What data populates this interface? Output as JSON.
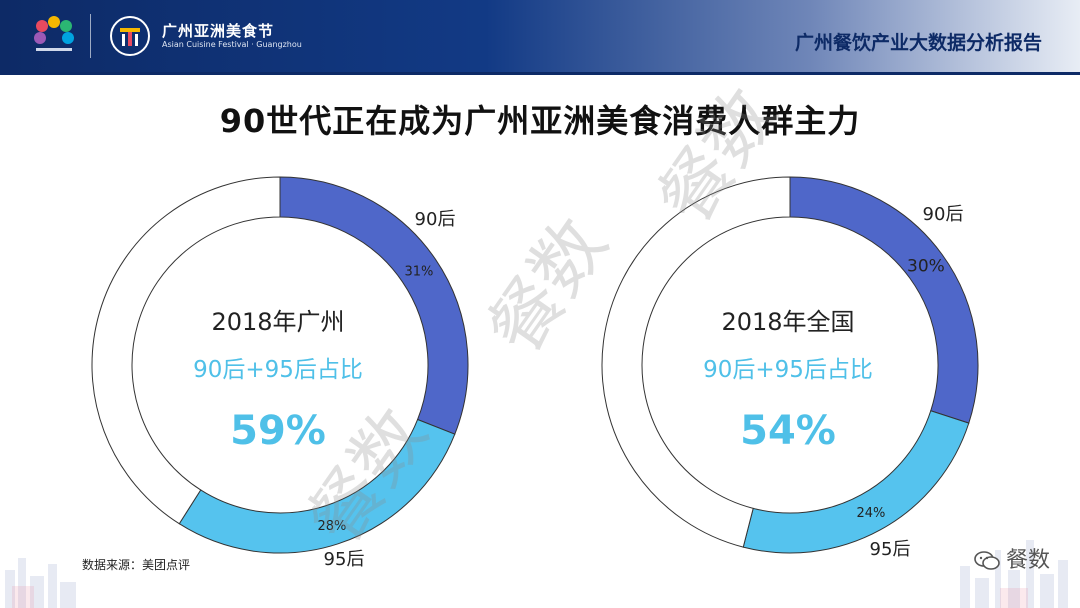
{
  "header": {
    "festival_name": "广州亚洲美食节",
    "festival_subtitle": "Asian Cuisine Festival · Guangzhou",
    "report_title": "广州餐饮产业大数据分析报告"
  },
  "main": {
    "title": "90世代正在成为广州亚洲美食消费人群主力"
  },
  "colors": {
    "series_90": "#4f67c9",
    "series_95": "#55c3ee",
    "rest": "#ffffff",
    "accent": "#4fc0e8",
    "header": "#0d2a66"
  },
  "chart_data": [
    {
      "type": "pie",
      "center_title": "2018年广州",
      "center_subtitle": "90后+95后占比",
      "center_value": "59%",
      "series": [
        {
          "name": "90后",
          "value": 31,
          "value_label": "31%"
        },
        {
          "name": "95后",
          "value": 28,
          "value_label": "28%"
        },
        {
          "name": "",
          "value": 41
        }
      ]
    },
    {
      "type": "pie",
      "center_title": "2018年全国",
      "center_subtitle": "90后+95后占比",
      "center_value": "54%",
      "series": [
        {
          "name": "90后",
          "value": 30,
          "value_label": "30%"
        },
        {
          "name": "95后",
          "value": 24,
          "value_label": "24%"
        },
        {
          "name": "",
          "value": 46
        }
      ]
    }
  ],
  "footer": {
    "source": "数据来源：美团点评",
    "wechat": "餐数"
  },
  "watermark": "餐数"
}
